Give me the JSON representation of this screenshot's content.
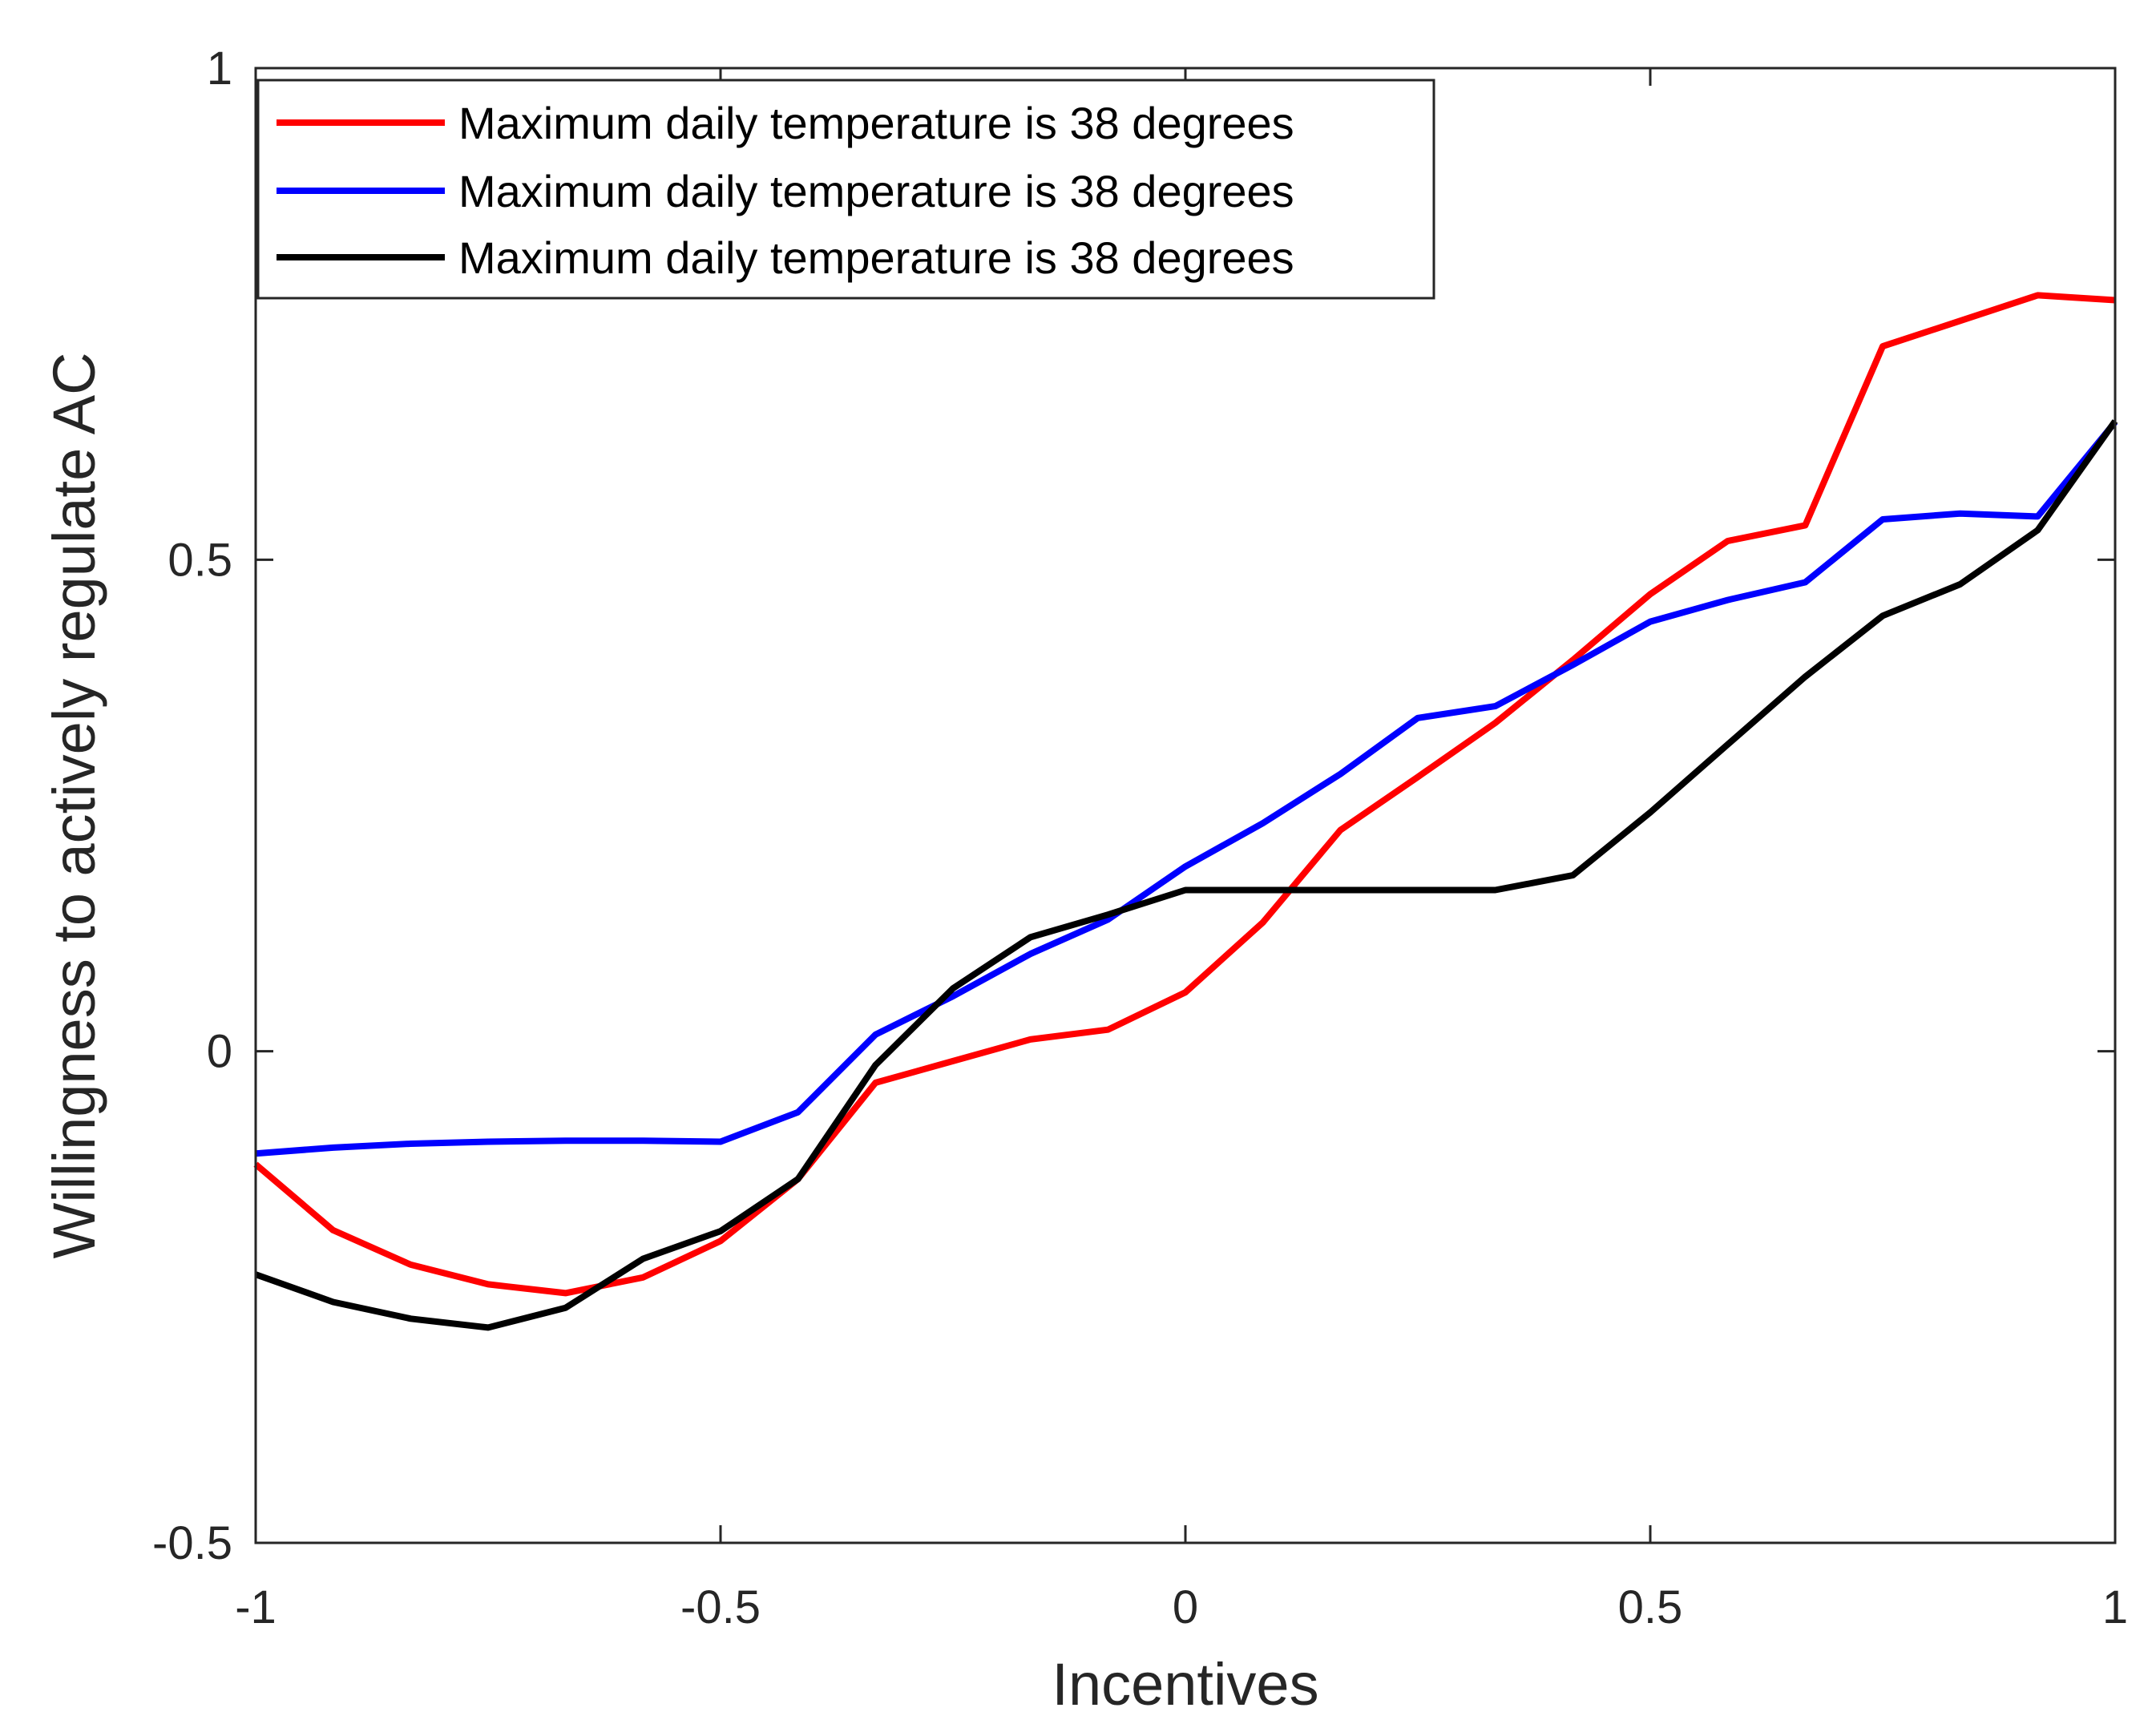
{
  "chart_data": {
    "type": "line",
    "title": "",
    "xlabel": "Incentives",
    "ylabel": "Willingness to actively regulate AC",
    "xlim": [
      -1,
      1
    ],
    "ylim": [
      -0.5,
      1
    ],
    "xticks": [
      -1,
      -0.5,
      0,
      0.5,
      1
    ],
    "xtick_labels": [
      "-1",
      "-0.5",
      "0",
      "0.5",
      "1"
    ],
    "yticks": [
      -0.5,
      0,
      0.5,
      1
    ],
    "ytick_labels": [
      "-0.5",
      "0",
      "0.5",
      "1"
    ],
    "grid": false,
    "legend_position": "top-left",
    "x": [
      -1,
      -0.9167,
      -0.8333,
      -0.75,
      -0.6667,
      -0.5833,
      -0.5,
      -0.4167,
      -0.3333,
      -0.25,
      -0.1667,
      -0.0833,
      0,
      0.0833,
      0.1667,
      0.25,
      0.3333,
      0.4167,
      0.5,
      0.5833,
      0.6667,
      0.75,
      0.8333,
      0.9167,
      1
    ],
    "series": [
      {
        "name": "Maximum daily temperature is 38 degrees",
        "color": "#ff0000",
        "values": [
          -0.115,
          -0.182,
          -0.217,
          -0.237,
          -0.246,
          -0.23,
          -0.193,
          -0.13,
          -0.032,
          -0.01,
          0.012,
          0.022,
          0.06,
          0.131,
          0.225,
          0.279,
          0.334,
          0.398,
          0.465,
          0.519,
          0.535,
          0.717,
          0.743,
          0.769,
          0.764
        ]
      },
      {
        "name": "Maximum daily temperature is 38 degrees",
        "color": "#0000ff",
        "values": [
          -0.104,
          -0.098,
          -0.094,
          -0.092,
          -0.091,
          -0.091,
          -0.092,
          -0.062,
          0.017,
          0.056,
          0.099,
          0.134,
          0.188,
          0.232,
          0.282,
          0.339,
          0.351,
          0.393,
          0.437,
          0.459,
          0.477,
          0.541,
          0.547,
          0.544,
          0.64
        ]
      },
      {
        "name": "Maximum daily temperature is 38 degrees",
        "color": "#000000",
        "values": [
          -0.227,
          -0.255,
          -0.272,
          -0.281,
          -0.261,
          -0.211,
          -0.183,
          -0.13,
          -0.014,
          0.064,
          0.116,
          0.139,
          0.164,
          0.164,
          0.164,
          0.164,
          0.164,
          0.179,
          0.243,
          0.312,
          0.381,
          0.443,
          0.475,
          0.53,
          0.641
        ]
      }
    ]
  }
}
